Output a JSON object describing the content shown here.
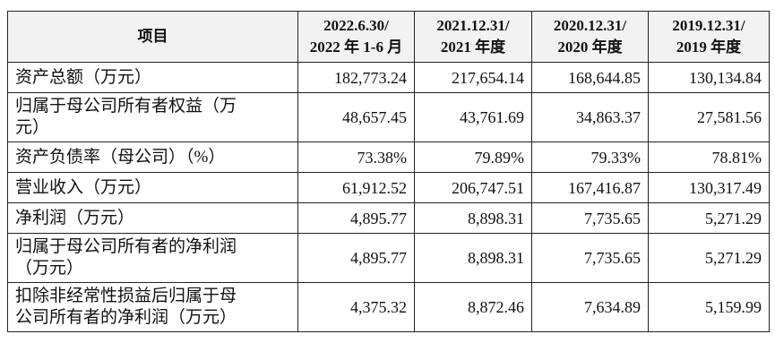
{
  "table": {
    "header": [
      "项目",
      [
        "2022.6.30/",
        "2022 年 1-6 月"
      ],
      [
        "2021.12.31/",
        "2021 年度"
      ],
      [
        "2020.12.31/",
        "2020 年度"
      ],
      [
        "2019.12.31/",
        "2019 年度"
      ]
    ],
    "rows": [
      [
        "资产总额（万元）",
        "182,773.24",
        "217,654.14",
        "168,644.85",
        "130,134.84"
      ],
      [
        "归属于母公司所有者权益（万元）",
        "48,657.45",
        "43,761.69",
        "34,863.37",
        "27,581.56"
      ],
      [
        "资产负债率（母公司）（%）",
        "73.38%",
        "79.89%",
        "79.33%",
        "78.81%"
      ],
      [
        "营业收入（万元）",
        "61,912.52",
        "206,747.51",
        "167,416.87",
        "130,317.49"
      ],
      [
        "净利润（万元）",
        "4,895.77",
        "8,898.31",
        "7,735.65",
        "5,271.29"
      ],
      [
        "归属于母公司所有者的净利润（万元）",
        "4,895.77",
        "8,898.31",
        "7,735.65",
        "5,271.29"
      ],
      [
        "扣除非经常性损益后归属于母公司所有者的净利润（万元）",
        "4,375.32",
        "8,872.46",
        "7,634.89",
        "5,159.99"
      ]
    ]
  }
}
